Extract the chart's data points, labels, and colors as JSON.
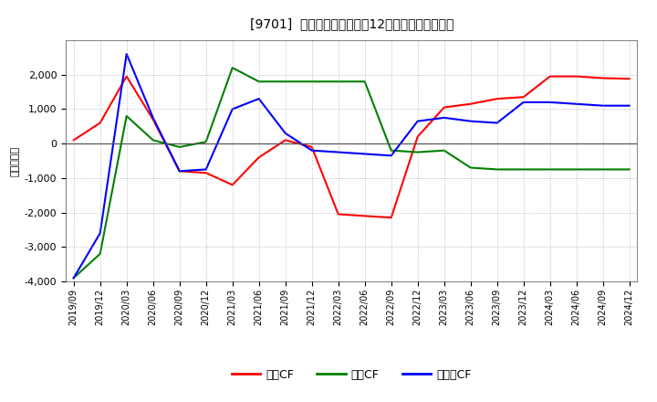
{
  "title": "[9701]  キャッシュフローの12か月移動合計の推移",
  "ylabel": "（百万円）",
  "x_labels": [
    "2019/09",
    "2019/12",
    "2020/03",
    "2020/06",
    "2020/09",
    "2020/12",
    "2021/03",
    "2021/06",
    "2021/09",
    "2021/12",
    "2022/03",
    "2022/06",
    "2022/09",
    "2022/12",
    "2023/03",
    "2023/06",
    "2023/09",
    "2023/12",
    "2024/03",
    "2024/06",
    "2024/09",
    "2024/12"
  ],
  "operating_cf": [
    100,
    600,
    1950,
    700,
    -800,
    -850,
    -1200,
    -400,
    100,
    -100,
    -2050,
    -2100,
    -2150,
    200,
    1050,
    1150,
    1300,
    1350,
    1950,
    1950,
    1900,
    1880
  ],
  "investing_cf": [
    -3900,
    -3200,
    800,
    100,
    -100,
    50,
    2200,
    1800,
    1800,
    1800,
    1800,
    1800,
    -200,
    -250,
    -200,
    -700,
    -750,
    -750,
    -750,
    -750,
    -750,
    -750
  ],
  "free_cf": [
    -3900,
    -2600,
    2600,
    750,
    -800,
    -750,
    1000,
    1300,
    300,
    -200,
    -250,
    -300,
    -350,
    650,
    750,
    650,
    600,
    1200,
    1200,
    1150,
    1100,
    1100
  ],
  "operating_color": "#ff0000",
  "investing_color": "#008000",
  "free_color": "#0000ff",
  "ylim": [
    -4000,
    3000
  ],
  "yticks": [
    -4000,
    -3000,
    -2000,
    -1000,
    0,
    1000,
    2000
  ],
  "background_color": "#ffffff",
  "grid_color": "#999999",
  "legend_labels": [
    "営業CF",
    "投資CF",
    "フリーCF"
  ]
}
